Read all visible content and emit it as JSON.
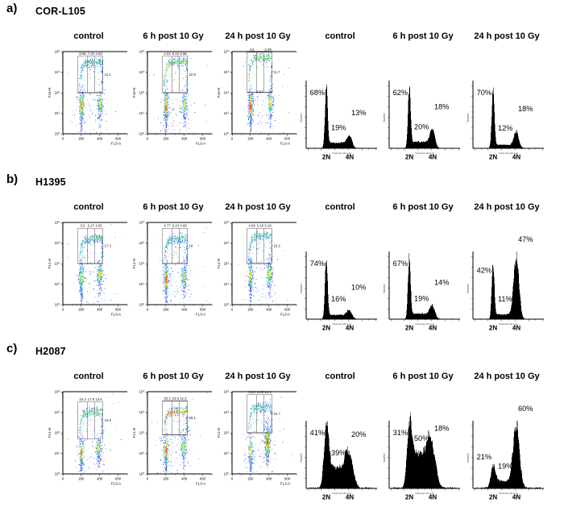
{
  "chart_data": {
    "type": "scatter",
    "description": "Flow cytometry figure: 3 cell-line panels, each with 3 pseudocolor dot plots (gated) and 3 DNA-content histograms",
    "scatter_axis": {
      "x_label": "FL3-A",
      "x_ticks": [
        "0",
        "200",
        "400",
        "600"
      ],
      "y_base": "10",
      "y_exponents": [
        "0",
        "1",
        "2",
        "3",
        "4"
      ]
    },
    "hist_axis": {
      "x_label": "Channels (FL3-A)",
      "y_label": "Number",
      "left_marker": "2N",
      "right_marker": "4N"
    },
    "palette": {
      "dot_blue": "#2b55e0",
      "dot_cyan": "#2fc4cf",
      "dot_green": "#3ecc3e",
      "dot_yellow": "#ffe000",
      "dot_orange": "#ff8a00",
      "dot_red": "#e02020",
      "hist_fill": "#000000",
      "gate_stroke": "#555555"
    },
    "panels": [
      {
        "letter": "a)",
        "cell_line": "COR-L105",
        "conditions": [
          "control",
          "6 h post 10 Gy",
          "24 h post 10 Gy"
        ],
        "scatters": [
          {
            "condition": "control",
            "y_axis": "FL5-H",
            "gate_labels": {
              "top_left": "8.86",
              "top_mid": "7.33",
              "top_right": "4.93",
              "side": "21.1",
              "bottom": null
            },
            "render": {
              "arc_top": 3.45,
              "gate_top": 3.78,
              "gate_bottom": 2.0,
              "left": "hot",
              "right": "warm",
              "arc": "cool",
              "right_x": 400,
              "right_cy": 1.45,
              "left_cy": 1.35,
              "left_n": 300,
              "right_n": 220,
              "right_sy": 0.3
            }
          },
          {
            "condition": "6 h post 10 Gy",
            "y_axis": "FL5-H",
            "gate_labels": {
              "top_left": "4.04",
              "top_mid": "9.12",
              "top_right": "9.66",
              "side": "22.9",
              "bottom": null
            },
            "render": {
              "arc_top": 3.5,
              "gate_top": 3.78,
              "gate_bottom": 2.0,
              "left": "hot",
              "right": "warm",
              "arc": "warm",
              "right_x": 400,
              "right_cy": 1.4,
              "left_cy": 1.3,
              "left_n": 300,
              "right_n": 220,
              "right_sy": 0.3
            }
          },
          {
            "condition": "24 h post 10 Gy",
            "y_axis": "FL5-H",
            "gate_labels": {
              "top_left": "4.6",
              "top_mid": null,
              "top_right": "3.49",
              "side": "11.7",
              "bottom": "3.57"
            },
            "render": {
              "arc_top": 3.72,
              "gate_top": 3.97,
              "gate_bottom": 2.02,
              "left": "hot",
              "right": "warm",
              "arc": "warm",
              "right_x": 415,
              "right_cy": 1.5,
              "left_cy": 1.3,
              "left_n": 390,
              "right_n": 200,
              "right_sy": 0.35
            }
          }
        ],
        "histograms": [
          {
            "condition": "control",
            "g1_label": "68%",
            "s_label": "19%",
            "g2_label": "13%",
            "g1_pct": 68,
            "s_pct": 19,
            "g2_pct": 13,
            "broad": false
          },
          {
            "condition": "6 h post 10 Gy",
            "g1_label": "62%",
            "s_label": "20%",
            "g2_label": "18%",
            "g1_pct": 62,
            "s_pct": 20,
            "g2_pct": 18,
            "broad": false
          },
          {
            "condition": "24 h post 10 Gy",
            "g1_label": "70%",
            "s_label": "12%",
            "g2_label": "18%",
            "g1_pct": 70,
            "s_pct": 12,
            "g2_pct": 18,
            "broad": false
          }
        ]
      },
      {
        "letter": "b)",
        "cell_line": "H1395",
        "conditions": [
          "control",
          "6 h post 10 Gy",
          "24 h post 10 Gy"
        ],
        "scatters": [
          {
            "condition": "control",
            "y_axis": "FL1-H",
            "gate_labels": {
              "top_left": "6.5",
              "top_mid": "6.27",
              "top_right": "4.55",
              "side": "17.3",
              "bottom": null
            },
            "render": {
              "arc_top": 3.2,
              "gate_top": 3.72,
              "gate_bottom": 2.0,
              "left": "warm",
              "right": "warm",
              "arc": "cool",
              "right_x": 400,
              "right_cy": 1.45,
              "left_cy": 1.3,
              "left_n": 300,
              "right_n": 230,
              "right_sy": 0.3
            }
          },
          {
            "condition": "6 h post 10 Gy",
            "y_axis": "FL1-H",
            "gate_labels": {
              "top_left": "4.77",
              "top_mid": "9.23",
              "top_right": "4.95",
              "side": "19",
              "bottom": null
            },
            "render": {
              "arc_top": 3.2,
              "gate_top": 3.72,
              "gate_bottom": 2.0,
              "left": "hot",
              "right": "warm",
              "arc": "cool",
              "right_x": 395,
              "right_cy": 1.35,
              "left_cy": 1.2,
              "left_n": 320,
              "right_n": 220,
              "right_sy": 0.3
            }
          },
          {
            "condition": "24 h post 10 Gy",
            "y_axis": "FL1-H",
            "gate_labels": {
              "top_left": "4.68",
              "top_mid": "5.18",
              "top_right": "5.28",
              "side": "15.2",
              "bottom": null
            },
            "render": {
              "arc_top": 3.35,
              "gate_top": 3.72,
              "gate_bottom": 2.0,
              "left": "warm",
              "right": "warm",
              "arc": "cool",
              "right_x": 405,
              "right_cy": 1.5,
              "left_cy": 1.4,
              "left_n": 280,
              "right_n": 260,
              "right_sy": 0.35
            }
          }
        ],
        "histograms": [
          {
            "condition": "control",
            "g1_label": "74%",
            "s_label": "16%",
            "g2_label": "10%",
            "g1_pct": 74,
            "s_pct": 16,
            "g2_pct": 10,
            "broad": false
          },
          {
            "condition": "6 h post 10 Gy",
            "g1_label": "67%",
            "s_label": "19%",
            "g2_label": "14%",
            "g1_pct": 67,
            "s_pct": 19,
            "g2_pct": 14,
            "broad": false
          },
          {
            "condition": "24 h post 10 Gy",
            "g1_label": "42%",
            "s_label": "11%",
            "g2_label": "47%",
            "g1_pct": 42,
            "s_pct": 11,
            "g2_pct": 47,
            "broad": false
          }
        ]
      },
      {
        "letter": "c)",
        "cell_line": "H2087",
        "conditions": [
          "control",
          "6 h post 10 Gy",
          "24 h post 10 Gy"
        ],
        "scatters": [
          {
            "condition": "control",
            "y_axis": "FL1-H",
            "gate_labels": {
              "top_left": "16.3",
              "top_mid": "17.9",
              "top_right": "13.6",
              "side": "44.9",
              "bottom": null
            },
            "render": {
              "arc_top": 3.0,
              "gate_top": 3.5,
              "gate_bottom": 1.7,
              "left": "hot",
              "right": "warm",
              "arc": "warm",
              "right_x": 385,
              "right_cy": 1.25,
              "left_cy": 1.0,
              "left_n": 200,
              "right_n": 210,
              "right_sy": 0.3
            }
          },
          {
            "condition": "6 h post 10 Gy",
            "y_axis": "FL1-H",
            "gate_labels": {
              "top_left": "20.3",
              "top_mid": "23.6",
              "top_right": "11.2",
              "side": "55.1",
              "bottom": null
            },
            "render": {
              "arc_top": 3.05,
              "gate_top": 3.55,
              "gate_bottom": 1.9,
              "left": "hot",
              "right": "warm",
              "arc": "hot",
              "right_x": 390,
              "right_cy": 1.3,
              "left_cy": 1.15,
              "left_n": 260,
              "right_n": 230,
              "right_sy": 0.3
            }
          },
          {
            "condition": "24 h post 10 Gy",
            "y_axis": "FL1-H",
            "gate_labels": {
              "top_left": "5.03",
              "top_mid": "6.09",
              "top_right": "13.3",
              "side": "24.7",
              "bottom": null
            },
            "render": {
              "arc_top": 3.25,
              "gate_top": 3.85,
              "gate_bottom": 2.0,
              "left": "warm",
              "right": "hot",
              "arc": "cool",
              "right_x": 380,
              "right_cy": 1.55,
              "left_cy": 1.1,
              "left_n": 180,
              "right_n": 500,
              "right_sy": 0.45
            }
          }
        ],
        "histograms": [
          {
            "condition": "control",
            "g1_label": "41%",
            "s_label": "39%",
            "g2_label": "20%",
            "g1_pct": 41,
            "s_pct": 39,
            "g2_pct": 20,
            "broad": true
          },
          {
            "condition": "6 h post 10 Gy",
            "g1_label": "31%",
            "s_label": "50%",
            "g2_label": "18%",
            "g1_pct": 31,
            "s_pct": 50,
            "g2_pct": 18,
            "broad": true
          },
          {
            "condition": "24 h post 10 Gy",
            "g1_label": "21%",
            "s_label": "19%",
            "g2_label": "60%",
            "g1_pct": 21,
            "s_pct": 19,
            "g2_pct": 60,
            "broad": true
          }
        ]
      }
    ]
  }
}
